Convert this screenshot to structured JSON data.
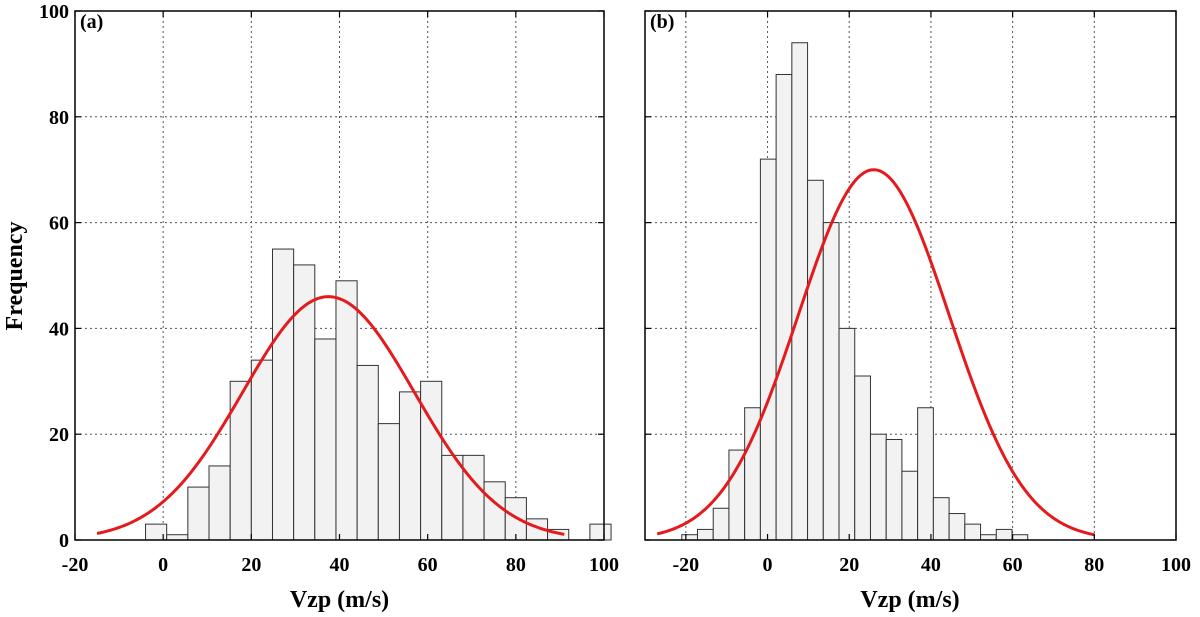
{
  "chart_data": [
    {
      "type": "bar",
      "panel_label": "(a)",
      "xlabel": "Vzp (m/s)",
      "ylabel": "Frequency",
      "xlim": [
        -20,
        100
      ],
      "ylim": [
        0,
        100
      ],
      "xticks": [
        -20,
        0,
        20,
        40,
        60,
        80,
        100
      ],
      "yticks": [
        0,
        20,
        40,
        60,
        80,
        100
      ],
      "grid": true,
      "bins": {
        "start": -4,
        "width": 4.8,
        "counts": [
          3,
          1,
          10,
          14,
          30,
          34,
          55,
          52,
          38,
          49,
          33,
          22,
          28,
          30,
          16,
          16,
          11,
          8,
          4,
          2,
          0,
          3
        ]
      },
      "fit": {
        "name": "Normal fit",
        "mean": 37.5,
        "sd": 19.5,
        "peak": 46,
        "x_range": [
          -15,
          91
        ],
        "color": "#e41a1c"
      }
    },
    {
      "type": "bar",
      "panel_label": "(b)",
      "xlabel": "Vzp (m/s)",
      "ylabel": "",
      "xlim": [
        -30,
        100
      ],
      "ylim": [
        0,
        100
      ],
      "xticks": [
        -20,
        0,
        20,
        40,
        60,
        80,
        100
      ],
      "yticks": [
        0,
        20,
        40,
        60,
        80,
        100
      ],
      "grid": true,
      "bins": {
        "start": -21,
        "width": 3.85,
        "counts": [
          1,
          2,
          6,
          17,
          25,
          72,
          88,
          94,
          68,
          60,
          40,
          31,
          20,
          19,
          13,
          25,
          8,
          5,
          3,
          1,
          2,
          1
        ]
      },
      "fit": {
        "name": "Normal fit",
        "mean": 26,
        "sd": 18.5,
        "peak": 70,
        "x_range": [
          -27,
          80
        ],
        "color": "#e41a1c"
      }
    }
  ]
}
